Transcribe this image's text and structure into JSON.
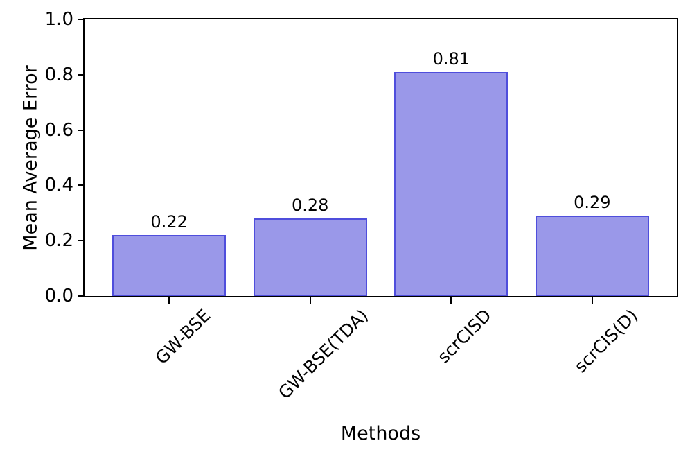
{
  "chart_data": {
    "type": "bar",
    "title": "",
    "xlabel": "Methods",
    "ylabel": "Mean Average Error",
    "categories": [
      "GW-BSE",
      "GW-BSE(TDA)",
      "scrCISD",
      "scrCIS(D)"
    ],
    "values": [
      0.22,
      0.28,
      0.81,
      0.29
    ],
    "bar_labels": [
      "0.22",
      "0.28",
      "0.81",
      "0.29"
    ],
    "ylim": [
      0.0,
      1.0
    ],
    "yticks": [
      0.0,
      0.2,
      0.4,
      0.6,
      0.8,
      1.0
    ],
    "ytick_labels": [
      "0.0",
      "0.2",
      "0.4",
      "0.6",
      "0.8",
      "1.0"
    ],
    "x_tick_rotation_deg": 45,
    "grid": false,
    "legend": null,
    "colors": {
      "bar_fill": "#9a98e9",
      "bar_edge": "#4f4edc",
      "spine": "#000000",
      "text": "#000000",
      "background": "#ffffff"
    }
  }
}
